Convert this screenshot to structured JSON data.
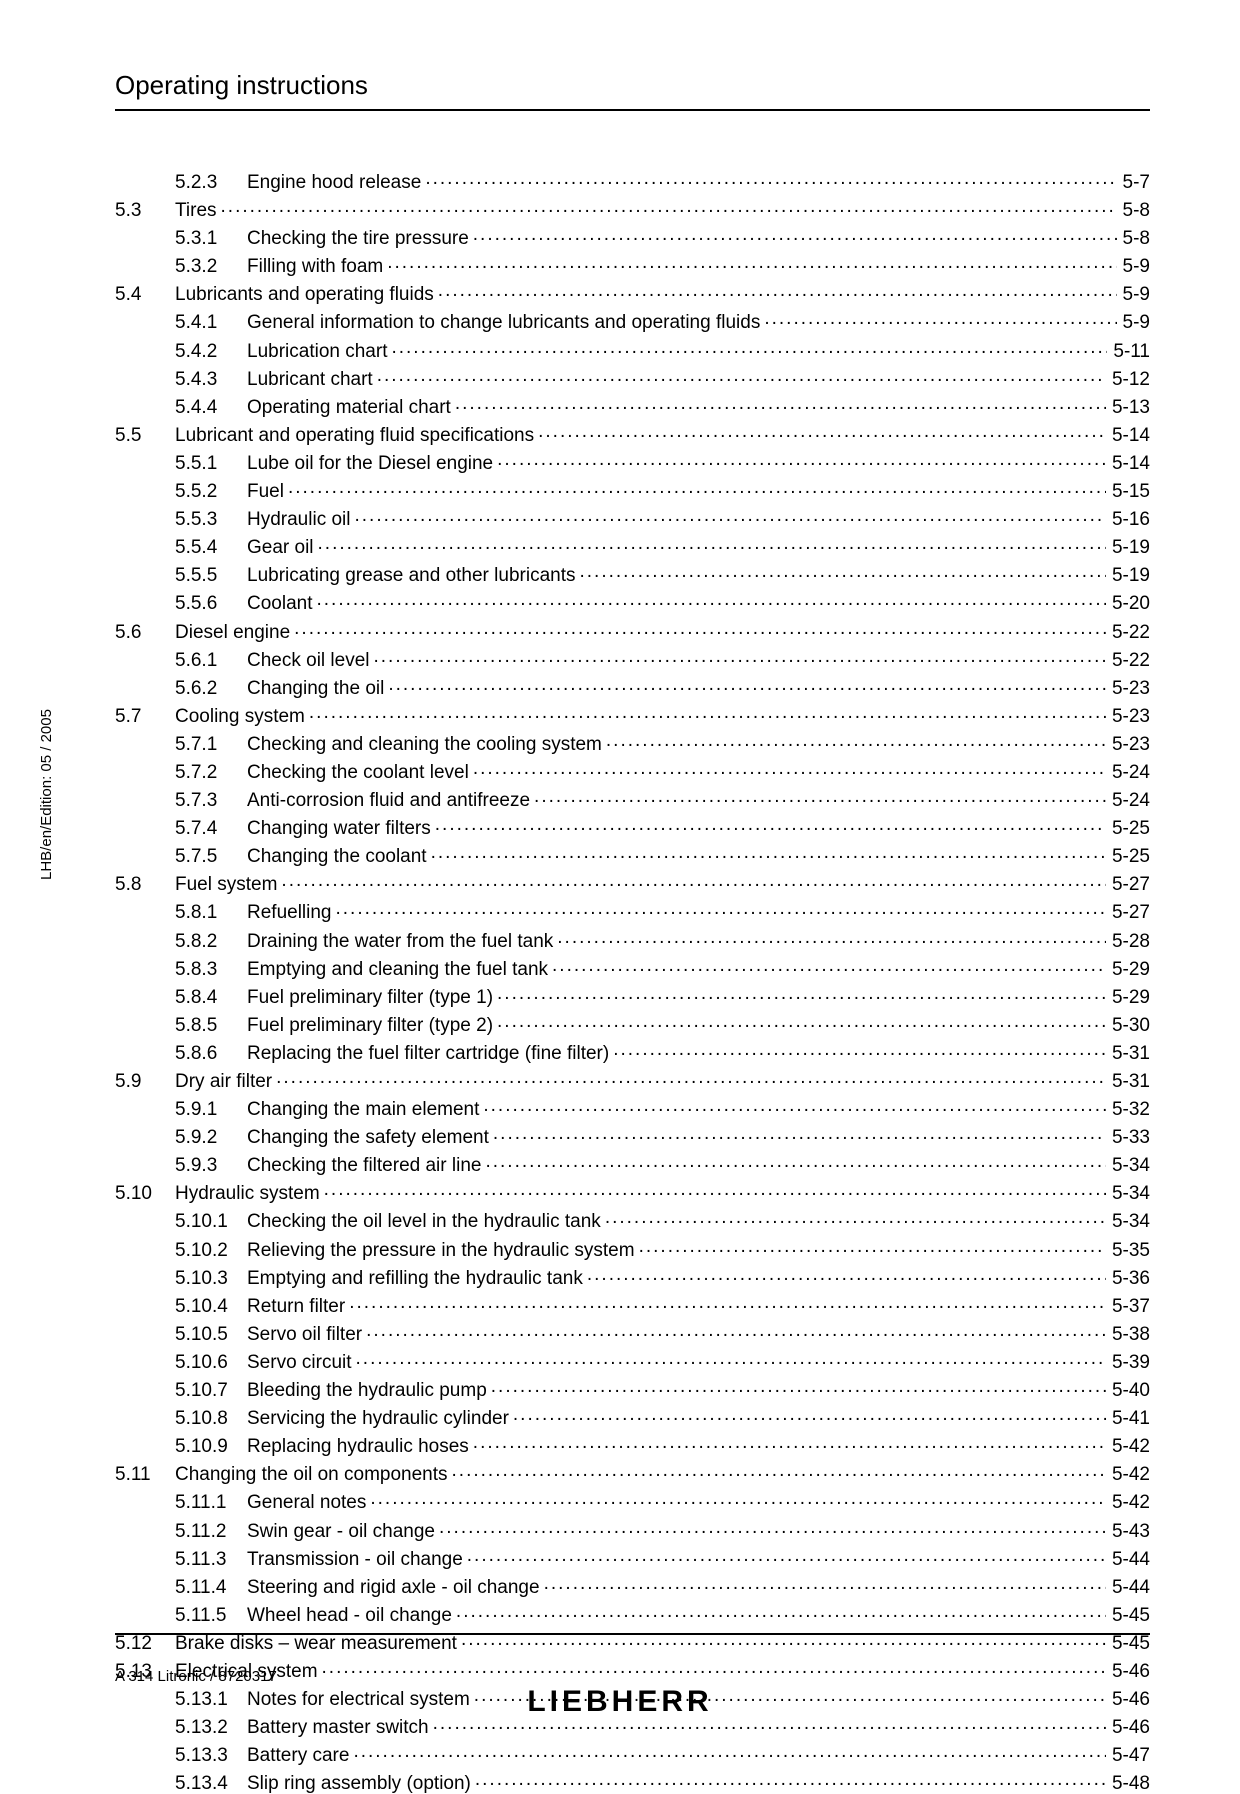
{
  "header": {
    "title": "Operating instructions"
  },
  "side_text": "LHB/en/Edition: 05 / 2005",
  "footer": {
    "left": "A 314 Litronic / 8720317",
    "logo": "LIEBHERR"
  },
  "toc": [
    {
      "sec": "",
      "sub": "5.2.3",
      "title": "Engine hood release",
      "page": "5-7"
    },
    {
      "sec": "5.3",
      "sub": "",
      "title": "Tires",
      "page": "5-8"
    },
    {
      "sec": "",
      "sub": "5.3.1",
      "title": "Checking the tire pressure",
      "page": "5-8"
    },
    {
      "sec": "",
      "sub": "5.3.2",
      "title": "Filling with foam",
      "page": "5-9"
    },
    {
      "sec": "5.4",
      "sub": "",
      "title": "Lubricants and operating fluids",
      "page": "5-9"
    },
    {
      "sec": "",
      "sub": "5.4.1",
      "title": "General information to change lubricants and operating fluids",
      "page": "5-9"
    },
    {
      "sec": "",
      "sub": "5.4.2",
      "title": "Lubrication chart",
      "page": "5-11"
    },
    {
      "sec": "",
      "sub": "5.4.3",
      "title": "Lubricant chart",
      "page": "5-12"
    },
    {
      "sec": "",
      "sub": "5.4.4",
      "title": "Operating material chart",
      "page": "5-13"
    },
    {
      "sec": "5.5",
      "sub": "",
      "title": "Lubricant and operating fluid specifications",
      "page": "5-14"
    },
    {
      "sec": "",
      "sub": "5.5.1",
      "title": "Lube oil for the Diesel engine",
      "page": "5-14"
    },
    {
      "sec": "",
      "sub": "5.5.2",
      "title": "Fuel",
      "page": "5-15"
    },
    {
      "sec": "",
      "sub": "5.5.3",
      "title": "Hydraulic oil",
      "page": "5-16"
    },
    {
      "sec": "",
      "sub": "5.5.4",
      "title": "Gear oil",
      "page": "5-19"
    },
    {
      "sec": "",
      "sub": "5.5.5",
      "title": "Lubricating grease and other lubricants",
      "page": "5-19"
    },
    {
      "sec": "",
      "sub": "5.5.6",
      "title": "Coolant",
      "page": "5-20"
    },
    {
      "sec": "5.6",
      "sub": "",
      "title": "Diesel engine",
      "page": "5-22"
    },
    {
      "sec": "",
      "sub": "5.6.1",
      "title": "Check oil level",
      "page": "5-22"
    },
    {
      "sec": "",
      "sub": "5.6.2",
      "title": "Changing the oil",
      "page": "5-23"
    },
    {
      "sec": "5.7",
      "sub": "",
      "title": "Cooling system",
      "page": "5-23"
    },
    {
      "sec": "",
      "sub": "5.7.1",
      "title": "Checking and cleaning the cooling system",
      "page": "5-23"
    },
    {
      "sec": "",
      "sub": "5.7.2",
      "title": "Checking the coolant level",
      "page": "5-24"
    },
    {
      "sec": "",
      "sub": "5.7.3",
      "title": "Anti-corrosion fluid and antifreeze",
      "page": "5-24"
    },
    {
      "sec": "",
      "sub": "5.7.4",
      "title": "Changing water filters",
      "page": "5-25"
    },
    {
      "sec": "",
      "sub": "5.7.5",
      "title": "Changing the coolant",
      "page": "5-25"
    },
    {
      "sec": "5.8",
      "sub": "",
      "title": "Fuel system",
      "page": "5-27"
    },
    {
      "sec": "",
      "sub": "5.8.1",
      "title": "Refuelling",
      "page": "5-27"
    },
    {
      "sec": "",
      "sub": "5.8.2",
      "title": "Draining the water from the fuel tank",
      "page": "5-28"
    },
    {
      "sec": "",
      "sub": "5.8.3",
      "title": "Emptying and cleaning the fuel tank",
      "page": "5-29"
    },
    {
      "sec": "",
      "sub": "5.8.4",
      "title": "Fuel preliminary filter (type 1)",
      "page": "5-29"
    },
    {
      "sec": "",
      "sub": "5.8.5",
      "title": "Fuel preliminary filter (type 2)",
      "page": "5-30"
    },
    {
      "sec": "",
      "sub": "5.8.6",
      "title": "Replacing the fuel filter cartridge (fine filter)",
      "page": "5-31"
    },
    {
      "sec": "5.9",
      "sub": "",
      "title": "Dry air filter",
      "page": "5-31"
    },
    {
      "sec": "",
      "sub": "5.9.1",
      "title": "Changing the main element",
      "page": "5-32"
    },
    {
      "sec": "",
      "sub": "5.9.2",
      "title": "Changing the safety element",
      "page": "5-33"
    },
    {
      "sec": "",
      "sub": "5.9.3",
      "title": "Checking the filtered air line",
      "page": "5-34"
    },
    {
      "sec": "5.10",
      "sub": "",
      "title": "Hydraulic system",
      "page": "5-34"
    },
    {
      "sec": "",
      "sub": "5.10.1",
      "title": "Checking the oil level in the hydraulic tank",
      "page": "5-34"
    },
    {
      "sec": "",
      "sub": "5.10.2",
      "title": "Relieving the pressure in the hydraulic system",
      "page": "5-35"
    },
    {
      "sec": "",
      "sub": "5.10.3",
      "title": "Emptying and refilling the hydraulic tank",
      "page": "5-36"
    },
    {
      "sec": "",
      "sub": "5.10.4",
      "title": "Return filter",
      "page": "5-37"
    },
    {
      "sec": "",
      "sub": "5.10.5",
      "title": "Servo oil filter",
      "page": "5-38"
    },
    {
      "sec": "",
      "sub": "5.10.6",
      "title": "Servo circuit",
      "page": "5-39"
    },
    {
      "sec": "",
      "sub": "5.10.7",
      "title": "Bleeding the hydraulic pump",
      "page": "5-40"
    },
    {
      "sec": "",
      "sub": "5.10.8",
      "title": "Servicing the hydraulic cylinder",
      "page": "5-41"
    },
    {
      "sec": "",
      "sub": "5.10.9",
      "title": "Replacing hydraulic hoses",
      "page": "5-42"
    },
    {
      "sec": "5.11",
      "sub": "",
      "title": "Changing the oil on components",
      "page": "5-42"
    },
    {
      "sec": "",
      "sub": "5.11.1",
      "title": "General notes",
      "page": "5-42"
    },
    {
      "sec": "",
      "sub": "5.11.2",
      "title": "Swin gear - oil change",
      "page": "5-43"
    },
    {
      "sec": "",
      "sub": "5.11.3",
      "title": "Transmission - oil change",
      "page": "5-44"
    },
    {
      "sec": "",
      "sub": "5.11.4",
      "title": "Steering and rigid axle - oil change",
      "page": "5-44"
    },
    {
      "sec": "",
      "sub": "5.11.5",
      "title": "Wheel head - oil change",
      "page": "5-45"
    },
    {
      "sec": "5.12",
      "sub": "",
      "title": "Brake disks – wear measurement",
      "page": "5-45"
    },
    {
      "sec": "5.13",
      "sub": "",
      "title": "Electrical system",
      "page": "5-46"
    },
    {
      "sec": "",
      "sub": "5.13.1",
      "title": "Notes for electrical system",
      "page": "5-46"
    },
    {
      "sec": "",
      "sub": "5.13.2",
      "title": "Battery master switch",
      "page": "5-46"
    },
    {
      "sec": "",
      "sub": "5.13.3",
      "title": "Battery care",
      "page": "5-47"
    },
    {
      "sec": "",
      "sub": "5.13.4",
      "title": "Slip ring assembly (option)",
      "page": "5-48"
    }
  ]
}
